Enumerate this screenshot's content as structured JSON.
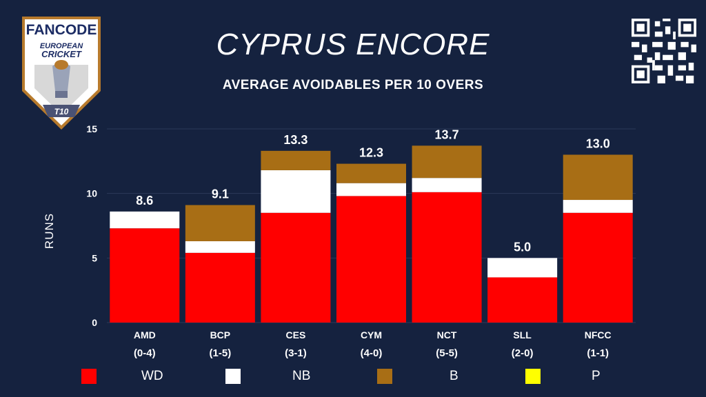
{
  "header": {
    "title": "CYPRUS ENCORE",
    "subtitle": "AVERAGE AVOIDABLES PER 10 OVERS"
  },
  "logo": {
    "brand": "FANCODE",
    "line1": "EUROPEAN",
    "line2": "CRICKET",
    "badge": "T10"
  },
  "colors": {
    "background": "#15223f",
    "WD": "#ff0000",
    "NB": "#ffffff",
    "B": "#a86e15",
    "P": "#ffff00",
    "grid": "#2c3a5a"
  },
  "chart_data": {
    "type": "bar",
    "stacked": true,
    "title": "AVERAGE AVOIDABLES PER 10 OVERS",
    "xlabel": "",
    "ylabel": "RUNS",
    "ylim": [
      0,
      15
    ],
    "yticks": [
      0,
      5,
      10,
      15
    ],
    "grid": true,
    "legend_position": "bottom",
    "categories": [
      "AMD",
      "BCP",
      "CES",
      "CYM",
      "NCT",
      "SLL",
      "NFCC"
    ],
    "records": [
      "(0-4)",
      "(1-5)",
      "(3-1)",
      "(4-0)",
      "(5-5)",
      "(2-0)",
      "(1-1)"
    ],
    "totals": [
      "8.6",
      "9.1",
      "13.3",
      "12.3",
      "13.7",
      "5.0",
      "13.0"
    ],
    "series": [
      {
        "name": "WD",
        "values": [
          7.3,
          5.4,
          8.5,
          9.8,
          10.1,
          3.5,
          8.5
        ]
      },
      {
        "name": "NB",
        "values": [
          1.3,
          0.9,
          3.3,
          1.0,
          1.1,
          1.5,
          1.0
        ]
      },
      {
        "name": "B",
        "values": [
          0.0,
          2.8,
          1.5,
          1.5,
          2.5,
          0.0,
          3.5
        ]
      },
      {
        "name": "P",
        "values": [
          0,
          0,
          0,
          0,
          0,
          0,
          0
        ]
      }
    ]
  }
}
